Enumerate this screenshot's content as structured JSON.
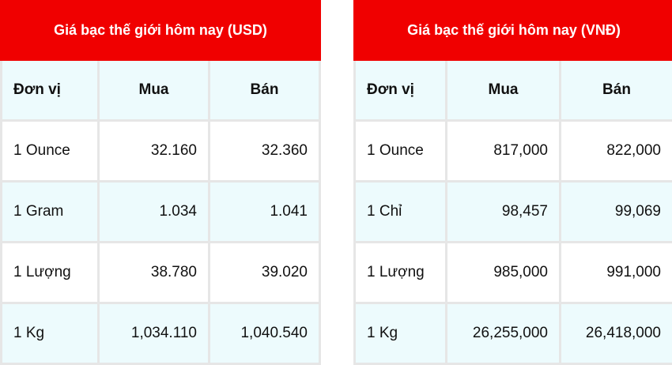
{
  "colors": {
    "header_bg": "#f00000",
    "alt_row_bg": "#edfbfd",
    "border": "#e6e6e6"
  },
  "tables": [
    {
      "title": "Giá bạc thế giới hôm nay (USD)",
      "headers": [
        "Đơn vị",
        "Mua",
        "Bán"
      ],
      "rows": [
        [
          "1 Ounce",
          "32.160",
          "32.360"
        ],
        [
          "1 Gram",
          "1.034",
          "1.041"
        ],
        [
          "1 Lượng",
          "38.780",
          "39.020"
        ],
        [
          "1 Kg",
          "1,034.110",
          "1,040.540"
        ]
      ]
    },
    {
      "title": "Giá bạc thế giới hôm nay (VNĐ)",
      "headers": [
        "Đơn vị",
        "Mua",
        "Bán"
      ],
      "rows": [
        [
          "1 Ounce",
          "817,000",
          "822,000"
        ],
        [
          "1 Chỉ",
          "98,457",
          "99,069"
        ],
        [
          "1 Lượng",
          "985,000",
          "991,000"
        ],
        [
          "1 Kg",
          "26,255,000",
          "26,418,000"
        ]
      ]
    }
  ]
}
